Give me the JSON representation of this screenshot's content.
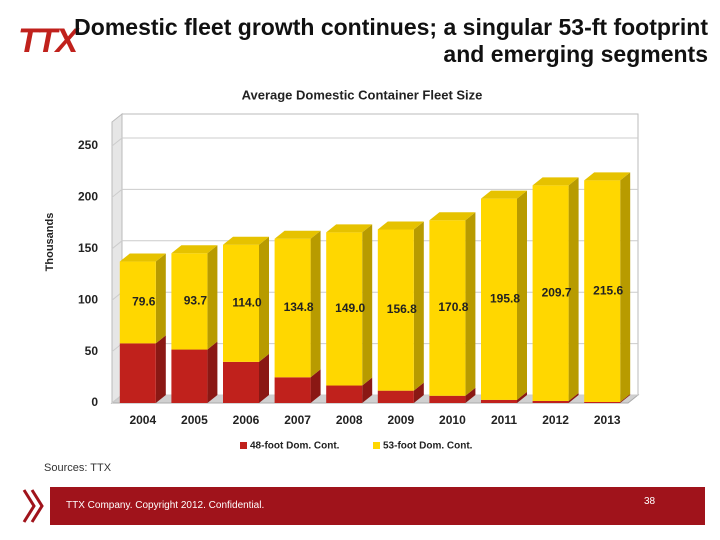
{
  "slide": {
    "logo": "TTX",
    "title": "Domestic fleet growth continues; a singular 53-ft footprint and emerging segments",
    "source": "Sources: TTX",
    "footer": "TTX Company. Copyright 2012. Confidential.",
    "page_number": "38"
  },
  "chart_data": {
    "type": "stacked_bar_3d",
    "title": "Average Domestic Container Fleet Size",
    "y_label": "Thousands",
    "categories": [
      "2004",
      "2005",
      "2006",
      "2007",
      "2008",
      "2009",
      "2010",
      "2011",
      "2012",
      "2013"
    ],
    "series": [
      {
        "name": "48-foot Dom. Cont.",
        "color": "#c0211c",
        "values": [
          58,
          52,
          40,
          25,
          17,
          12,
          7,
          3,
          2,
          1
        ]
      },
      {
        "name": "53-foot Dom. Cont.",
        "color": "#ffd700",
        "values": [
          79.6,
          93.7,
          114,
          134.8,
          149,
          156.8,
          170.8,
          195.8,
          209.7,
          215.6
        ],
        "value_labels": [
          "79.6",
          "93.7",
          "114.0",
          "134.8",
          "149.0",
          "156.8",
          "170.8",
          "195.8",
          "209.7",
          "215.6"
        ]
      }
    ],
    "ylim": [
      0,
      250
    ],
    "yticks": [
      0,
      50,
      100,
      150,
      200,
      250
    ],
    "grid": true,
    "legend": "bottom"
  }
}
